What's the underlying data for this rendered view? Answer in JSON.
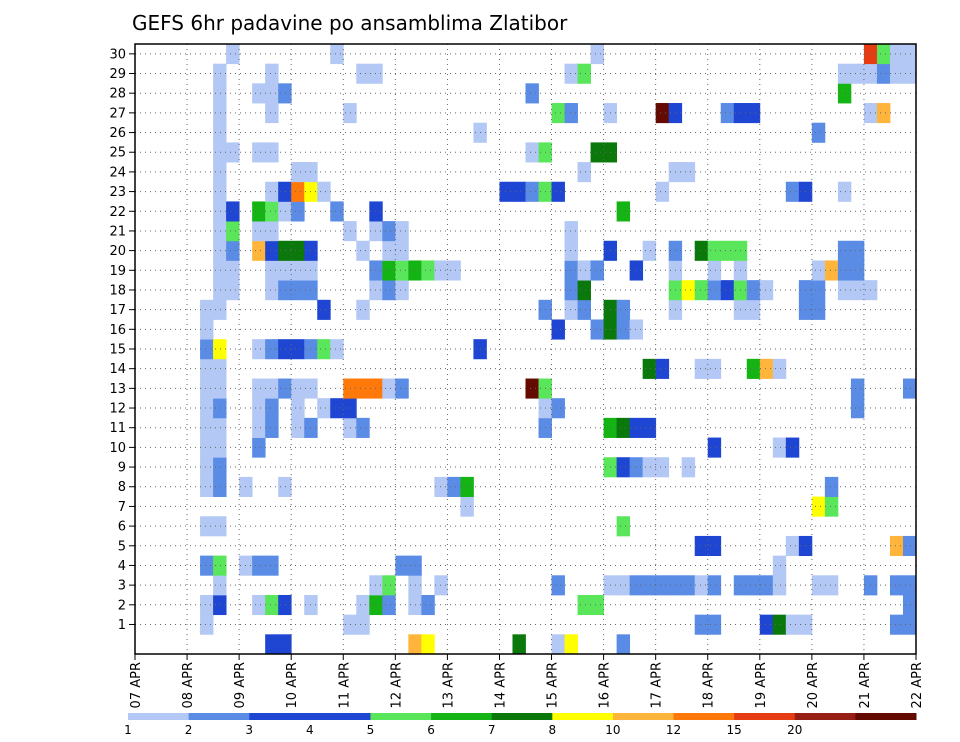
{
  "chart_data": {
    "type": "heatmap",
    "title": "GEFS 6hr padavine po ansamblima Zlatibor",
    "x_tick_labels": [
      "07 APR",
      "08 APR",
      "09 APR",
      "10 APR",
      "11 APR",
      "12 APR",
      "13 APR",
      "14 APR",
      "15 APR",
      "16 APR",
      "17 APR",
      "18 APR",
      "19 APR",
      "20 APR",
      "21 APR",
      "22 APR"
    ],
    "y_tick_labels": [
      "1",
      "2",
      "3",
      "4",
      "5",
      "6",
      "7",
      "8",
      "9",
      "10",
      "11",
      "12",
      "13",
      "14",
      "15",
      "16",
      "17",
      "18",
      "19",
      "20",
      "21",
      "22",
      "23",
      "24",
      "25",
      "26",
      "27",
      "28",
      "29",
      "30"
    ],
    "legend_labels": [
      "1",
      "2",
      "3",
      "4",
      "5",
      "6",
      "7",
      "8",
      "10",
      "12",
      "15",
      "20"
    ],
    "legend_colors": [
      "#b4c8f5",
      "#5a8ce6",
      "#1e46d2",
      "#1e46d2",
      "#5ae65a",
      "#14b414",
      "#0a780a",
      "#ffff00",
      "#ffb43c",
      "#ff780a",
      "#e63c14",
      "#961e14",
      "#640a00"
    ],
    "level_colors": {
      "a": "#b4c8f5",
      "b": "#5a8ce6",
      "c": "#1e46d2",
      "d": "#5ae65a",
      "e": "#14b414",
      "f": "#0a780a",
      "g": "#ffff00",
      "h": "#ffb43c",
      "i": "#ff780a",
      "j": "#e63c14",
      "k": "#640a00"
    },
    "columns_per_day": 4,
    "rows": {
      "30": ".......a.......a...................a....................jdaa..aa",
      "29": "......a...a......aa..............ad...................aaabaa....",
      "28": "......a..aab..................b.......................e.........",
      "27": "......a...a.....a...............db..a...kc...bcc........ah.....",
      "26": "......a...................a.........................b.........b.",
      "25": "......aa.aa...................ad...ff..........................b",
      "24": "......a.....aa....................a......aa.....................",
      "23": "......a...aciga.............ccbdc.......a.........bc..a.........",
      "22": "......ac.edab..b..c..................e..........................",
      "21": "......ad.aa.....a.aba............a...............................",
      "20": "......ab.hcffc...a.aa............a..c..a.b.fddd.......bb........e",
      "19": "......aa..aaaa....bededaa........bab..c..a..a.a.....ahbb.........",
      "18": "......aa..abbb....aba............bf......dgdbcdba..bb.aaa........",
      "17": ".....aa.......c..a.............b.ab.fb...a....aa...bb............",
      "16": ".....a..........................c..bfba...........................",
      "15": ".....bg..abccbda..........c.......................................j",
      "14": ".....aa................................fc..aa..eha..........a..aj",
      "13": ".....aa..aabaa..iiiab.........kd.......................b...bbe....",
      "12": ".....ab..ab.a.acc..............ab......................b....bba...",
      "11": ".....aa..ab.ab..ab.............b....efcc.........................b",
      "10": ".....aa..b..................................c....ac............",
      "9": ".....ab.............................dcbaa.a.....................",
      "8": ".....ab.a..a...........abe...........................b...........",
      "7": ".........................a..........................gd..........f",
      "6": ".....aa..............................d.......................c..",
      "5": "...........................................cc.....ac......hbba..c",
      "4": ".....bd.abb.........bb...........................a..............",
      "3": "......a...........ad.a.a........b...aabbbbbab.bbba..aa..b.bba...ab",
      "2": ".....ac..adc.a...aeb.ab...........dd.......................b..bb..",
      "1": ".....a..........aa.........................bb...cfaa......bb......",
      "0": "..........cc.........hg......f..ag...b.........................."
    }
  }
}
